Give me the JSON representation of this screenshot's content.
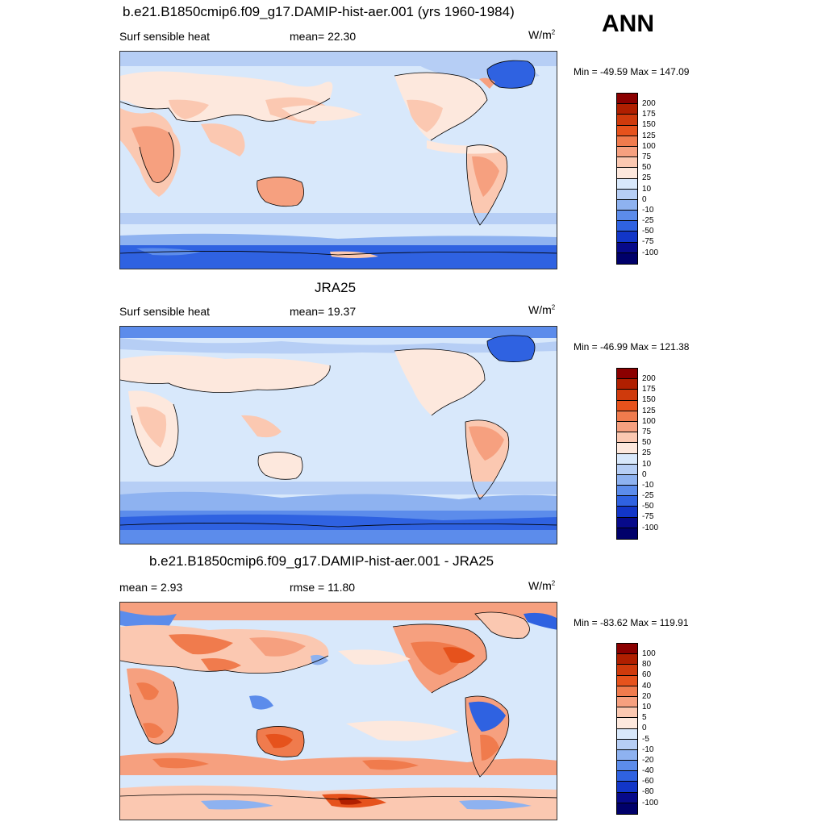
{
  "season": "ANN",
  "panels": [
    {
      "title": "b.e21.B1850cmip6.f09_g17.DAMIP-hist-aer.001 (yrs 1960-1984)",
      "left_label": "Surf sensible heat",
      "center_label": "mean=  22.30",
      "units": "W/m",
      "units_sup": "2",
      "minmax": "Min = -49.59 Max = 147.09",
      "colorbar": {
        "labels": [
          "200",
          "175",
          "150",
          "125",
          "100",
          "75",
          "50",
          "25",
          "10",
          "0",
          "-10",
          "-25",
          "-50",
          "-75",
          "-100"
        ],
        "colors": [
          "#8b0000",
          "#b01f00",
          "#cf3a0c",
          "#e6521c",
          "#f07b4d",
          "#f6a07f",
          "#fbc8b1",
          "#fde8dd",
          "#d8e8fb",
          "#b6cef5",
          "#8eb2f0",
          "#5c8ceb",
          "#2f62e1",
          "#1236c8",
          "#070a8a",
          "#00006a"
        ]
      }
    },
    {
      "title": "JRA25",
      "left_label": "Surf sensible heat",
      "center_label": "mean=  19.37",
      "units": "W/m",
      "units_sup": "2",
      "minmax": "Min = -46.99 Max = 121.38",
      "colorbar": {
        "labels": [
          "200",
          "175",
          "150",
          "125",
          "100",
          "75",
          "50",
          "25",
          "10",
          "0",
          "-10",
          "-25",
          "-50",
          "-75",
          "-100"
        ],
        "colors": [
          "#8b0000",
          "#b01f00",
          "#cf3a0c",
          "#e6521c",
          "#f07b4d",
          "#f6a07f",
          "#fbc8b1",
          "#fde8dd",
          "#d8e8fb",
          "#b6cef5",
          "#8eb2f0",
          "#5c8ceb",
          "#2f62e1",
          "#1236c8",
          "#070a8a",
          "#00006a"
        ]
      }
    },
    {
      "title": "b.e21.B1850cmip6.f09_g17.DAMIP-hist-aer.001 - JRA25",
      "left_label": "mean =   2.93",
      "center_label": "rmse =  11.80",
      "units": "W/m",
      "units_sup": "2",
      "minmax": "Min = -83.62 Max = 119.91",
      "colorbar": {
        "labels": [
          "100",
          "80",
          "60",
          "40",
          "20",
          "10",
          "5",
          "0",
          "-5",
          "-10",
          "-20",
          "-40",
          "-60",
          "-80",
          "-100"
        ],
        "colors": [
          "#8b0000",
          "#b01f00",
          "#cf3a0c",
          "#e6521c",
          "#f07b4d",
          "#f6a07f",
          "#fbc8b1",
          "#fde8dd",
          "#d8e8fb",
          "#b6cef5",
          "#8eb2f0",
          "#5c8ceb",
          "#2f62e1",
          "#1236c8",
          "#070a8a",
          "#00006a"
        ]
      }
    }
  ]
}
